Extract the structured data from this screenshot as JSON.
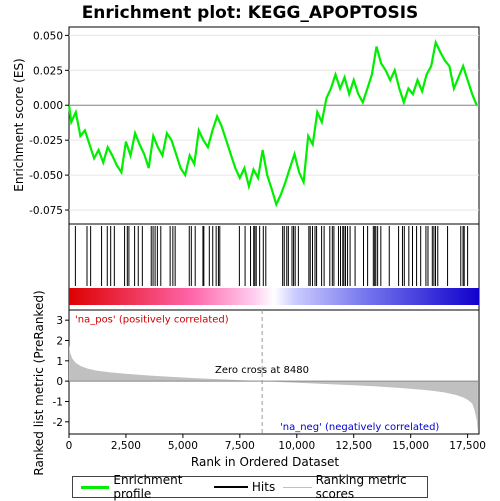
{
  "chart_data": {
    "type": "line",
    "title": "Enrichment plot: KEGG_APOPTOSIS",
    "xlabel": "Rank in Ordered Dataset",
    "ylabel_top": "Enrichment score (ES)",
    "ylabel_bottom": "Ranked list metric (PreRanked)",
    "xlim": [
      0,
      18000
    ],
    "ylim_top": [
      -0.085,
      0.056
    ],
    "ylim_bottom": [
      -2.6,
      3.5
    ],
    "x_ticks": [
      0,
      2500,
      5000,
      7500,
      10000,
      12500,
      15000,
      17500
    ],
    "x_tick_labels": [
      "0",
      "2,500",
      "5,000",
      "7,500",
      "10,000",
      "12,500",
      "15,000",
      "17,500"
    ],
    "y_ticks_top": [
      0.05,
      0.025,
      0.0,
      -0.025,
      -0.05,
      -0.075
    ],
    "y_tick_labels_top": [
      "0.050",
      "0.025",
      "0.000",
      "-0.025",
      "-0.050",
      "-0.075"
    ],
    "y_ticks_bottom": [
      3,
      2,
      1,
      0,
      -1,
      -2
    ],
    "y_tick_labels_bottom": [
      "3",
      "2",
      "1",
      "0",
      "-1",
      "-2"
    ],
    "zero_cross_label": "Zero cross at 8480",
    "zero_cross": 8480,
    "pos_label": "'na_pos' (positively correlated)",
    "neg_label": "'na_neg' (negatively correlated)",
    "enrichment_profile": {
      "name": "Enrichment profile",
      "color": "#00ee00",
      "x": [
        0,
        100,
        300,
        500,
        700,
        900,
        1100,
        1300,
        1500,
        1700,
        1900,
        2100,
        2300,
        2500,
        2700,
        2900,
        3100,
        3300,
        3500,
        3700,
        3900,
        4100,
        4300,
        4500,
        4700,
        4900,
        5100,
        5300,
        5500,
        5700,
        5900,
        6100,
        6300,
        6500,
        6700,
        6900,
        7100,
        7300,
        7500,
        7700,
        7900,
        8100,
        8300,
        8500,
        8700,
        8900,
        9100,
        9300,
        9500,
        9700,
        9900,
        10100,
        10300,
        10500,
        10700,
        10900,
        11100,
        11300,
        11500,
        11700,
        11900,
        12100,
        12300,
        12500,
        12700,
        12900,
        13100,
        13300,
        13500,
        13700,
        13900,
        14100,
        14300,
        14500,
        14700,
        14900,
        15100,
        15300,
        15500,
        15700,
        15900,
        16100,
        16300,
        16500,
        16700,
        16900,
        17100,
        17300,
        17500,
        17700,
        17900
      ],
      "y": [
        0.0,
        -0.012,
        -0.005,
        -0.022,
        -0.018,
        -0.028,
        -0.038,
        -0.032,
        -0.041,
        -0.03,
        -0.036,
        -0.043,
        -0.048,
        -0.026,
        -0.036,
        -0.02,
        -0.028,
        -0.035,
        -0.045,
        -0.022,
        -0.03,
        -0.036,
        -0.02,
        -0.025,
        -0.035,
        -0.045,
        -0.05,
        -0.036,
        -0.042,
        -0.018,
        -0.025,
        -0.03,
        -0.018,
        -0.008,
        -0.015,
        -0.025,
        -0.035,
        -0.045,
        -0.052,
        -0.045,
        -0.058,
        -0.046,
        -0.052,
        -0.032,
        -0.05,
        -0.06,
        -0.071,
        -0.064,
        -0.055,
        -0.045,
        -0.035,
        -0.048,
        -0.055,
        -0.022,
        -0.028,
        -0.005,
        -0.012,
        0.005,
        0.012,
        0.022,
        0.012,
        0.02,
        0.008,
        0.018,
        0.008,
        0.002,
        0.012,
        0.022,
        0.042,
        0.03,
        0.025,
        0.018,
        0.025,
        0.012,
        0.002,
        0.012,
        0.008,
        0.018,
        0.01,
        0.022,
        0.028,
        0.045,
        0.038,
        0.032,
        0.028,
        0.012,
        0.02,
        0.028,
        0.018,
        0.008,
        0.0
      ]
    },
    "hits": [
      280,
      790,
      950,
      1430,
      1680,
      1830,
      1990,
      2440,
      2560,
      2630,
      2880,
      3040,
      3220,
      3610,
      3690,
      3780,
      3880,
      4030,
      4440,
      4560,
      4660,
      5280,
      5370,
      5540,
      5880,
      5920,
      6160,
      6310,
      6460,
      6560,
      6620,
      7480,
      7730,
      7970,
      8110,
      8160,
      8220,
      8370,
      8530,
      8640,
      9380,
      9450,
      9560,
      9630,
      9790,
      9860,
      9930,
      10070,
      10530,
      10590,
      10690,
      10800,
      10870,
      11090,
      11200,
      11450,
      11560,
      11630,
      11830,
      11920,
      12020,
      12070,
      12140,
      12230,
      12340,
      12560,
      12930,
      13110,
      13360,
      13420,
      13470,
      13550,
      13690,
      14060,
      14470,
      14640,
      14720,
      14920,
      15080,
      15260,
      15440,
      15670,
      15760,
      15950,
      16020,
      16090,
      16190,
      16620,
      17200,
      17300,
      17350,
      17500
    ],
    "ranked_metric": {
      "name": "Ranking metric scores",
      "color": "#c0c0c0",
      "x": [
        0,
        50,
        150,
        300,
        500,
        800,
        1200,
        1800,
        2500,
        3500,
        4500,
        5500,
        6500,
        7500,
        8480,
        9500,
        10500,
        11500,
        12500,
        13500,
        14500,
        15500,
        16000,
        16500,
        17000,
        17300,
        17500,
        17700,
        17800,
        17900,
        17950
      ],
      "y": [
        1.8,
        1.4,
        1.1,
        0.9,
        0.75,
        0.62,
        0.52,
        0.43,
        0.36,
        0.28,
        0.21,
        0.15,
        0.1,
        0.05,
        0.0,
        -0.05,
        -0.1,
        -0.15,
        -0.2,
        -0.26,
        -0.33,
        -0.42,
        -0.48,
        -0.56,
        -0.68,
        -0.8,
        -0.92,
        -1.1,
        -1.4,
        -1.9,
        -2.5
      ]
    },
    "legend": [
      "Enrichment profile",
      "Hits",
      "Ranking metric scores"
    ],
    "legend_position": "bottom"
  }
}
